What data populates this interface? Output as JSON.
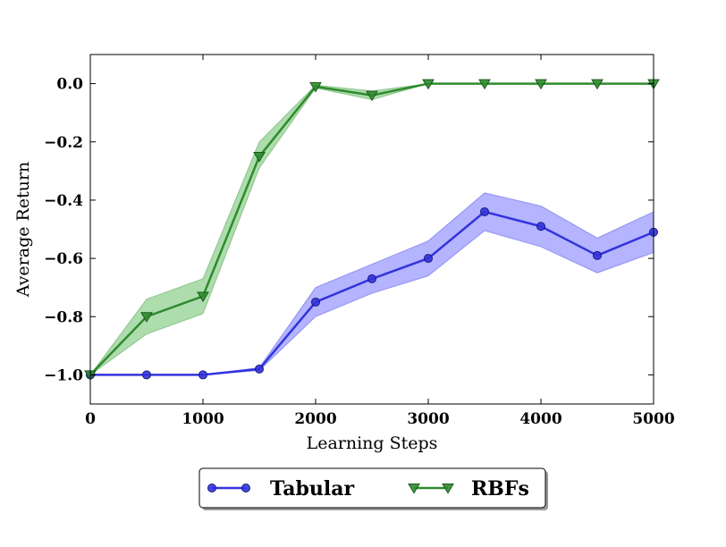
{
  "chart_data": {
    "type": "line",
    "xlabel": "Learning Steps",
    "ylabel": "Average Return",
    "xlim": [
      0,
      5000
    ],
    "ylim": [
      -1.1,
      0.1
    ],
    "x_ticks": [
      0,
      1000,
      2000,
      3000,
      4000,
      5000
    ],
    "x_tick_labels": [
      "0",
      "1000",
      "2000",
      "3000",
      "4000",
      "5000"
    ],
    "y_ticks": [
      0.0,
      -0.2,
      -0.4,
      -0.6,
      -0.8,
      -1.0
    ],
    "y_tick_labels": [
      "0.0",
      "−0.2",
      "−0.4",
      "−0.6",
      "−0.8",
      "−1.0"
    ],
    "grid": false,
    "legend_placement": "below plot, center",
    "x": [
      0,
      500,
      1000,
      1500,
      2000,
      2500,
      3000,
      3500,
      4000,
      4500,
      5000
    ],
    "series": [
      {
        "name": "Tabular",
        "marker": "circle",
        "color": "#3333dd",
        "fill_color": "#7777ff",
        "values": [
          -1.0,
          -1.0,
          -1.0,
          -0.98,
          -0.75,
          -0.67,
          -0.6,
          -0.44,
          -0.49,
          -0.59,
          -0.51
        ],
        "lower": [
          -1.0,
          -1.0,
          -1.0,
          -0.985,
          -0.8,
          -0.72,
          -0.66,
          -0.505,
          -0.56,
          -0.65,
          -0.58
        ],
        "upper": [
          -1.0,
          -1.0,
          -1.0,
          -0.975,
          -0.7,
          -0.62,
          -0.54,
          -0.375,
          -0.42,
          -0.53,
          -0.44
        ]
      },
      {
        "name": "RBFs",
        "marker": "triangle-down",
        "color": "#2e8b2e",
        "fill_color": "#6abf6a",
        "values": [
          -1.0,
          -0.8,
          -0.73,
          -0.25,
          -0.01,
          -0.04,
          0.0,
          0.0,
          0.0,
          0.0,
          0.0
        ],
        "lower": [
          -1.0,
          -0.86,
          -0.79,
          -0.29,
          -0.015,
          -0.055,
          0.0,
          0.0,
          0.0,
          0.0,
          0.0
        ],
        "upper": [
          -1.0,
          -0.74,
          -0.67,
          -0.2,
          -0.005,
          -0.025,
          0.0,
          0.0,
          0.0,
          0.0,
          0.0
        ]
      }
    ]
  }
}
